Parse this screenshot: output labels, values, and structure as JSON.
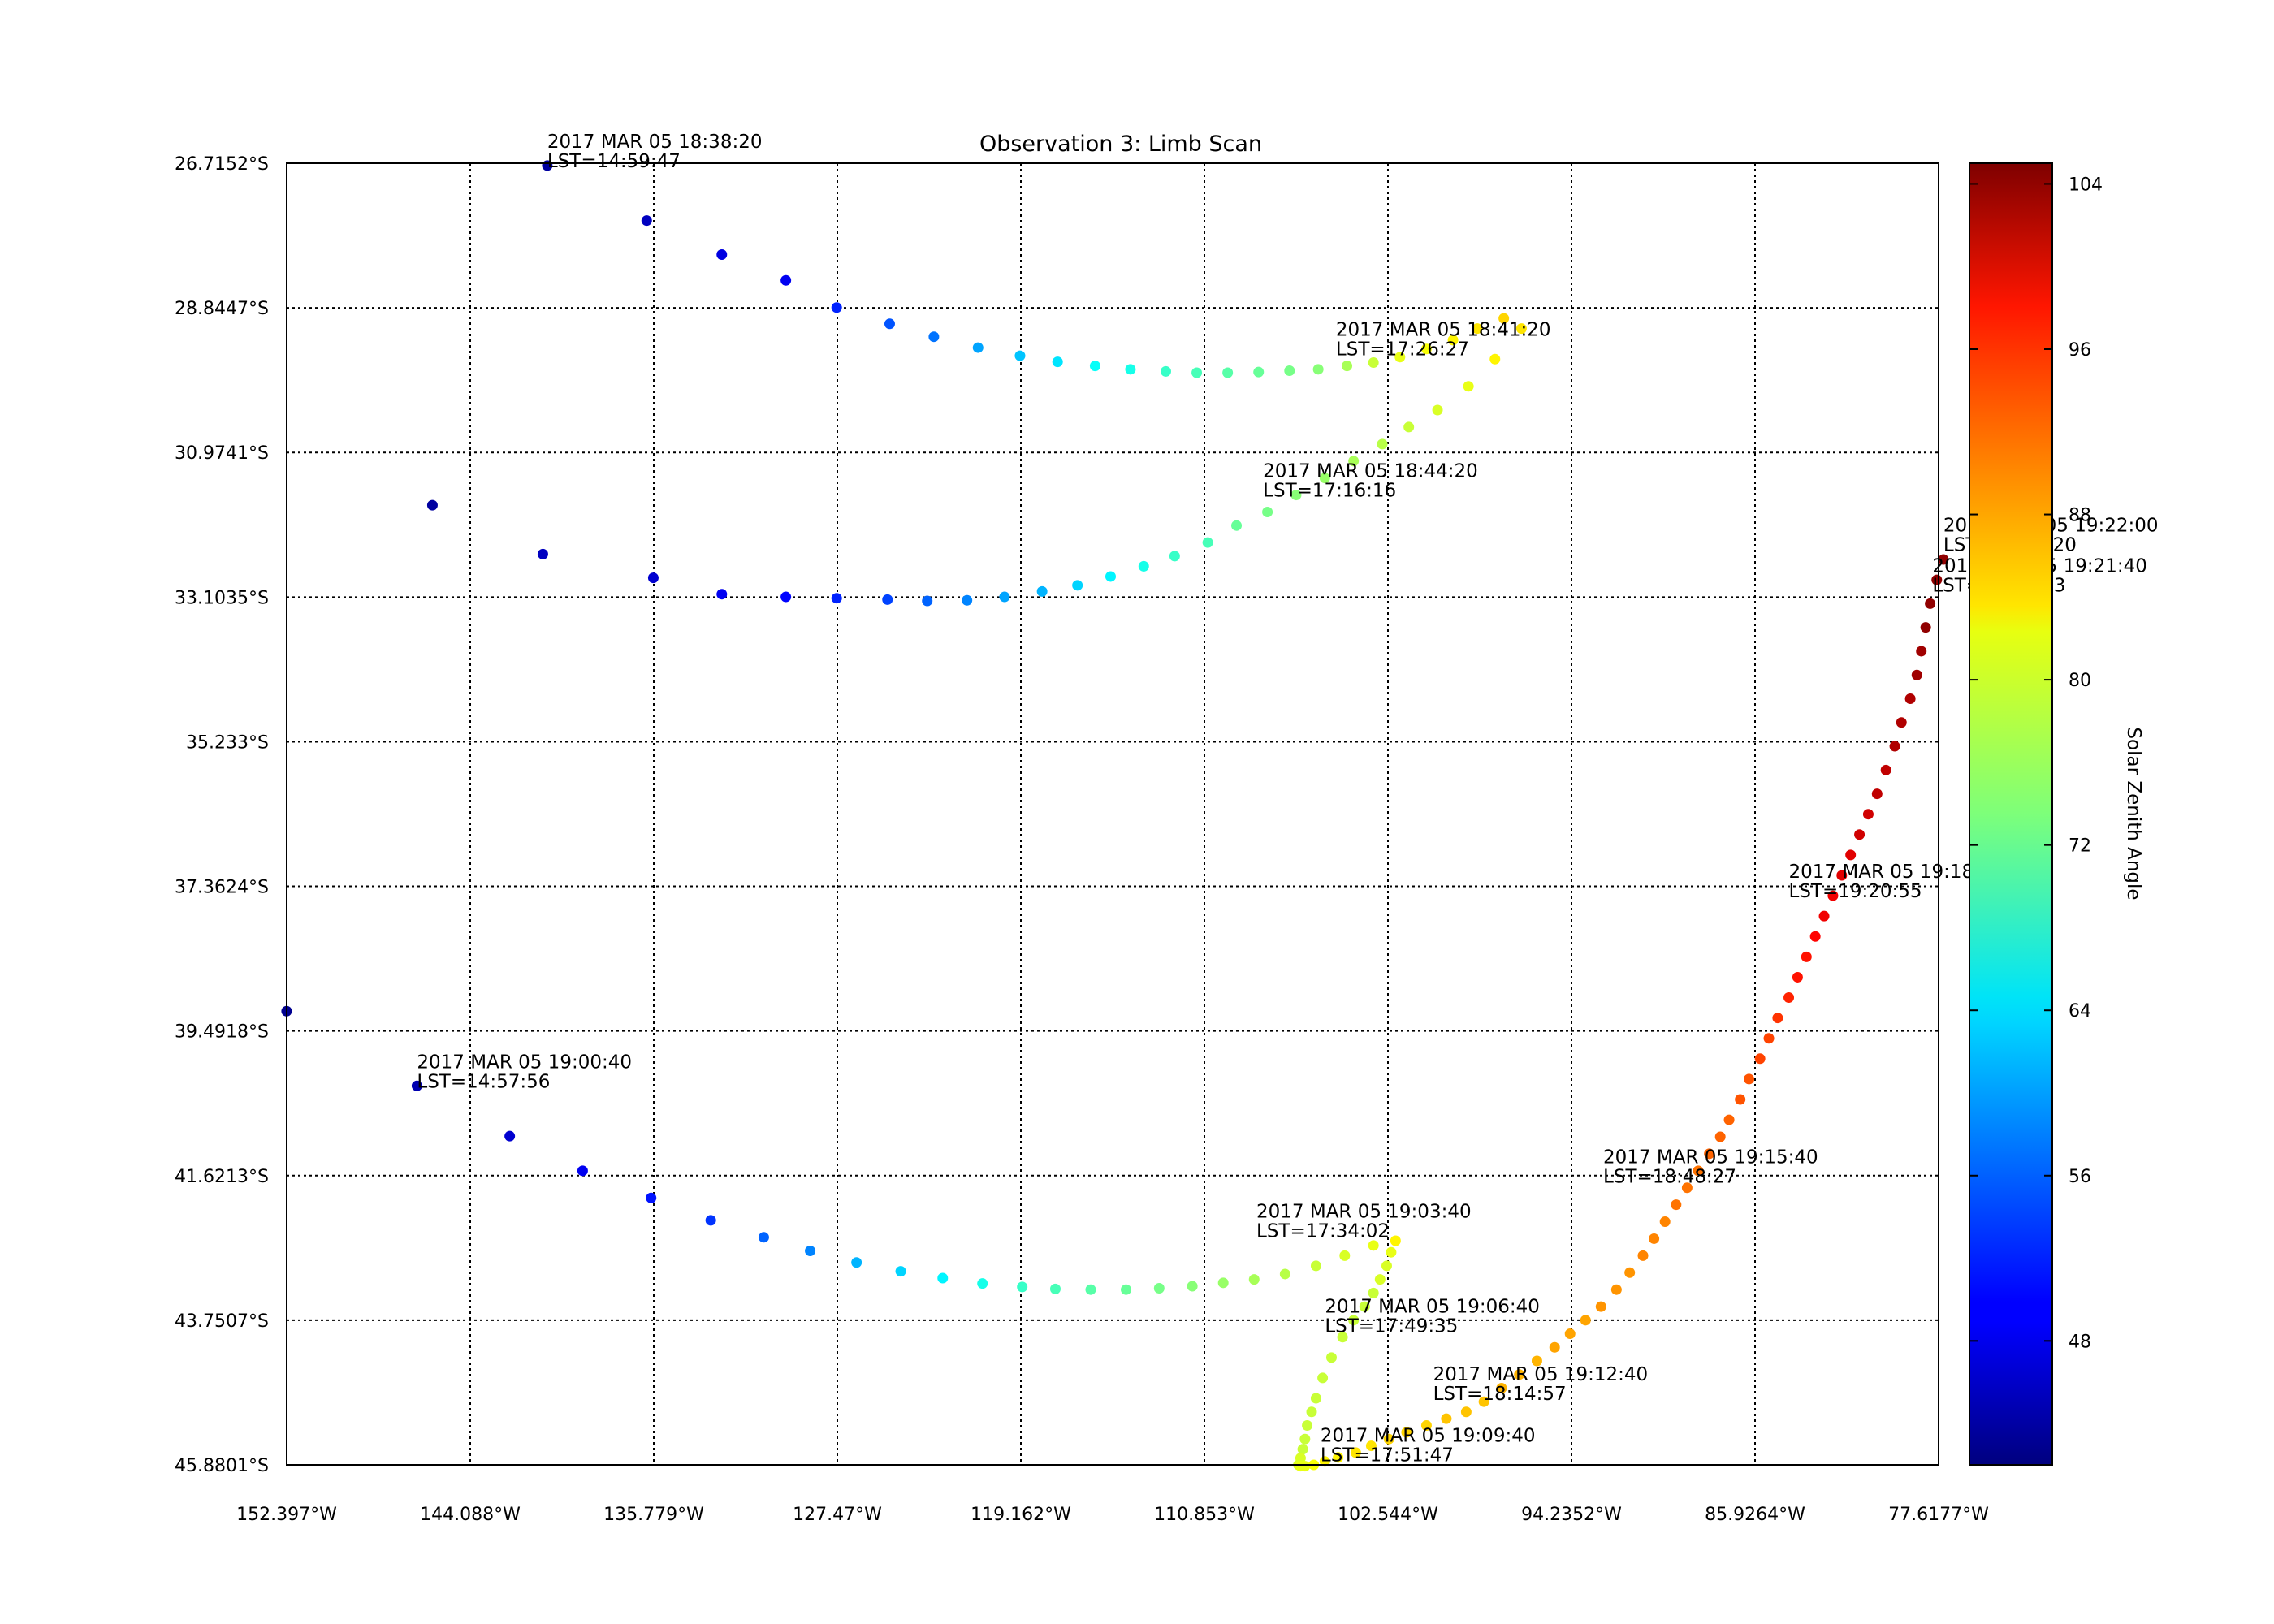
{
  "chart_data": {
    "type": "scatter",
    "title": "Observation 3: Limb Scan",
    "xlabel": "",
    "ylabel": "",
    "colorbar_label": "Solar Zenith Angle",
    "colormap": "jet",
    "color_range": [
      42,
      105
    ],
    "colorbar_ticks": [
      48,
      56,
      64,
      72,
      80,
      88,
      96,
      104
    ],
    "grid": true,
    "xlim": [
      152.397,
      77.6177
    ],
    "ylim": [
      45.8801,
      26.7152
    ],
    "x_ticks": [
      "152.397°W",
      "144.088°W",
      "135.779°W",
      "127.47°W",
      "119.162°W",
      "110.853°W",
      "102.544°W",
      "94.2352°W",
      "85.9264°W",
      "77.6177°W"
    ],
    "y_ticks": [
      "26.7152°S",
      "28.8447°S",
      "30.9741°S",
      "33.1035°S",
      "35.233°S",
      "37.3624°S",
      "39.4918°S",
      "41.6213°S",
      "43.7507°S",
      "45.8801°S"
    ],
    "annotations": [
      {
        "line1": "2017 MAR 05 18:38:20",
        "line2": "LST=14:59:47",
        "lon": 140.6,
        "lat": 26.75
      },
      {
        "line1": "2017 MAR 05 18:41:20",
        "line2": "LST=17:26:27",
        "lon": 104.9,
        "lat": 29.52
      },
      {
        "line1": "2017 MAR 05 18:44:20",
        "line2": "LST=17:16:16",
        "lon": 108.2,
        "lat": 31.6
      },
      {
        "line1": "2017 MAR 05 19:00:40",
        "line2": "LST=14:57:56",
        "lon": 146.5,
        "lat": 40.3
      },
      {
        "line1": "2017 MAR 05 19:03:40",
        "line2": "LST=17:34:02",
        "lon": 108.5,
        "lat": 42.5
      },
      {
        "line1": "2017 MAR 05 19:06:40",
        "line2": "LST=17:49:35",
        "lon": 105.4,
        "lat": 43.9
      },
      {
        "line1": "2017 MAR 05 19:09:40",
        "line2": "LST=17:51:47",
        "lon": 105.6,
        "lat": 45.8
      },
      {
        "line1": "2017 MAR 05 19:12:40",
        "line2": "LST=18:14:57",
        "lon": 100.5,
        "lat": 44.9
      },
      {
        "line1": "2017 MAR 05 19:15:40",
        "line2": "LST=18:48:27",
        "lon": 92.8,
        "lat": 41.7
      },
      {
        "line1": "2017 MAR 05 19:18:40",
        "line2": "LST=19:20:55",
        "lon": 84.4,
        "lat": 37.5
      },
      {
        "line1": "2017 MAR 05 19:21:40",
        "line2": "LST=19:24:33",
        "lon": 77.9,
        "lat": 33.0
      },
      {
        "line1": "2017 MAR 05 19:22:00",
        "line2": "LST=19:26:20",
        "lon": 77.4,
        "lat": 32.4
      }
    ],
    "series": [
      {
        "lon": [
          140.6,
          136.1,
          132.7,
          129.8,
          127.5,
          125.1,
          123.1,
          121.1,
          119.2,
          117.5,
          115.8,
          114.2,
          112.6,
          111.2,
          109.8,
          108.4,
          107.0,
          105.7,
          104.4,
          103.2,
          102.0,
          100.8,
          99.6,
          98.5,
          97.3,
          96.5,
          97.7,
          98.9,
          100.3,
          101.6,
          102.8,
          104.1,
          105.4,
          106.7,
          108.0,
          109.4,
          110.7,
          112.2,
          113.6,
          115.1,
          116.6,
          118.2,
          119.9,
          121.6,
          123.4,
          125.2,
          127.5,
          129.8,
          132.7,
          135.8,
          140.8,
          145.8
        ],
        "lat": [
          26.75,
          27.56,
          28.06,
          28.44,
          28.84,
          29.08,
          29.27,
          29.43,
          29.55,
          29.64,
          29.7,
          29.75,
          29.78,
          29.8,
          29.8,
          29.79,
          29.77,
          29.75,
          29.7,
          29.65,
          29.57,
          29.45,
          29.32,
          29.15,
          29.0,
          29.15,
          29.6,
          30.0,
          30.35,
          30.6,
          30.85,
          31.1,
          31.35,
          31.6,
          31.85,
          32.05,
          32.3,
          32.5,
          32.65,
          32.8,
          32.93,
          33.02,
          33.1,
          33.15,
          33.16,
          33.14,
          33.12,
          33.1,
          33.06,
          32.82,
          32.47,
          31.75
        ],
        "sza": [
          44,
          46,
          48,
          49,
          52,
          55,
          57,
          60,
          62,
          64,
          66,
          67,
          69,
          70,
          71,
          72,
          73,
          74,
          76,
          78,
          80,
          81,
          82,
          83,
          84,
          83,
          82,
          80,
          79,
          78,
          77,
          76,
          75,
          74,
          73,
          72,
          70,
          69,
          67,
          65,
          63,
          61,
          60,
          58,
          56,
          54,
          52,
          50,
          49,
          47,
          46,
          44
        ]
      },
      {
        "lon": [
          152.4,
          146.5,
          142.3,
          139.0,
          135.9,
          133.2,
          130.8,
          128.7,
          126.6,
          124.6,
          122.7,
          120.9,
          119.1,
          117.6,
          116.0,
          114.4,
          112.9,
          111.4,
          110.0,
          108.6,
          107.2,
          105.8,
          104.5,
          103.2,
          102.2,
          102.4,
          102.6,
          102.9,
          103.2,
          103.6,
          104.1,
          104.6,
          105.1,
          105.5,
          105.8,
          106.0,
          106.2,
          106.3,
          106.4,
          106.5,
          106.6,
          106.5,
          106.3,
          105.9,
          105.4,
          104.8,
          104.0,
          103.3,
          102.5,
          101.7,
          100.8,
          99.9,
          99.0,
          98.2,
          97.4,
          96.6,
          95.8,
          95.0,
          94.3,
          93.6,
          92.9,
          92.2,
          91.6,
          91.0,
          90.5,
          90.0,
          89.5,
          89.0,
          88.5,
          88.0,
          87.5,
          87.1,
          86.6,
          86.2,
          85.7,
          85.3,
          84.9,
          84.4,
          84.0,
          83.6,
          83.2,
          82.8,
          82.4,
          82.0,
          81.6,
          81.2,
          80.8,
          80.4,
          80.0,
          79.6,
          79.3,
          78.9,
          78.6,
          78.4,
          78.2,
          78.0,
          77.7,
          77.4
        ],
        "lat": [
          39.2,
          40.3,
          41.04,
          41.55,
          41.95,
          42.28,
          42.53,
          42.73,
          42.9,
          43.03,
          43.13,
          43.21,
          43.26,
          43.29,
          43.3,
          43.3,
          43.28,
          43.25,
          43.2,
          43.15,
          43.07,
          42.95,
          42.8,
          42.65,
          42.58,
          42.75,
          42.95,
          43.15,
          43.35,
          43.55,
          43.75,
          44.0,
          44.3,
          44.6,
          44.9,
          45.1,
          45.3,
          45.5,
          45.65,
          45.78,
          45.88,
          45.9,
          45.9,
          45.88,
          45.83,
          45.77,
          45.7,
          45.6,
          45.5,
          45.4,
          45.3,
          45.2,
          45.1,
          44.95,
          44.75,
          44.55,
          44.35,
          44.15,
          43.95,
          43.75,
          43.55,
          43.3,
          43.05,
          42.8,
          42.55,
          42.3,
          42.05,
          41.8,
          41.55,
          41.3,
          41.05,
          40.8,
          40.5,
          40.2,
          39.9,
          39.6,
          39.3,
          39.0,
          38.7,
          38.4,
          38.1,
          37.8,
          37.5,
          37.2,
          36.9,
          36.6,
          36.3,
          36.0,
          35.65,
          35.3,
          34.95,
          34.6,
          34.25,
          33.9,
          33.55,
          33.2,
          32.85,
          32.55
        ],
        "sza": [
          43,
          45,
          47,
          49,
          51,
          53,
          56,
          58,
          61,
          63,
          65,
          67,
          69,
          70,
          71,
          72,
          73,
          74,
          75,
          76,
          77,
          78,
          79,
          80,
          82,
          80,
          79,
          79,
          78,
          78,
          78,
          78,
          78,
          78,
          78,
          78,
          78,
          78,
          78,
          79,
          79,
          80,
          80,
          81,
          82,
          82,
          83,
          83,
          84,
          84,
          84,
          85,
          85,
          85,
          86,
          86,
          86,
          87,
          87,
          87,
          88,
          88,
          88,
          89,
          89,
          89,
          90,
          90,
          90,
          91,
          91,
          91,
          92,
          92,
          93,
          93,
          94,
          95,
          96,
          96,
          97,
          98,
          98,
          99,
          99,
          100,
          100,
          101,
          101,
          102,
          102,
          102,
          103,
          103,
          104,
          104,
          104,
          104
        ]
      }
    ]
  }
}
